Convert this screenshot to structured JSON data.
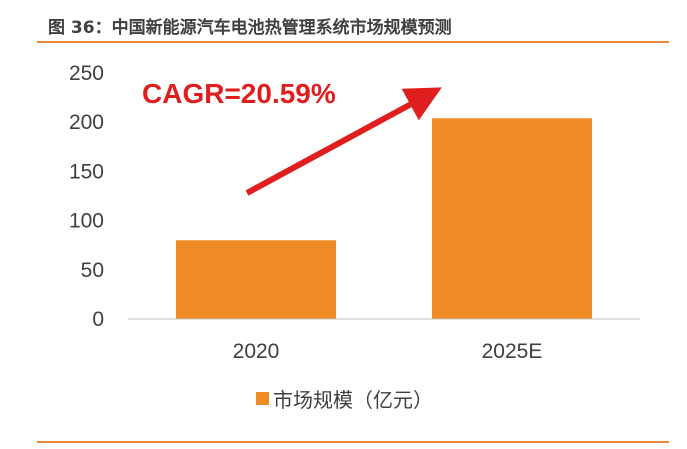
{
  "figure": {
    "title": "图 36：中国新能源汽车电池热管理系统市场规模预测"
  },
  "colors": {
    "bar": "#f08a24",
    "arrow": "#e01e1e",
    "rule": "#e8893a",
    "text": "#404040"
  },
  "chart_data": {
    "type": "bar",
    "categories": [
      "2020",
      "2025E"
    ],
    "series": [
      {
        "name": "市场规模（亿元）",
        "values": [
          80,
          204
        ]
      }
    ],
    "ylim": [
      0,
      250
    ],
    "yticks": [
      "0",
      "50",
      "100",
      "150",
      "200",
      "250"
    ],
    "grid": false,
    "legend": "bottom",
    "annotation": "CAGR=20.59%"
  }
}
